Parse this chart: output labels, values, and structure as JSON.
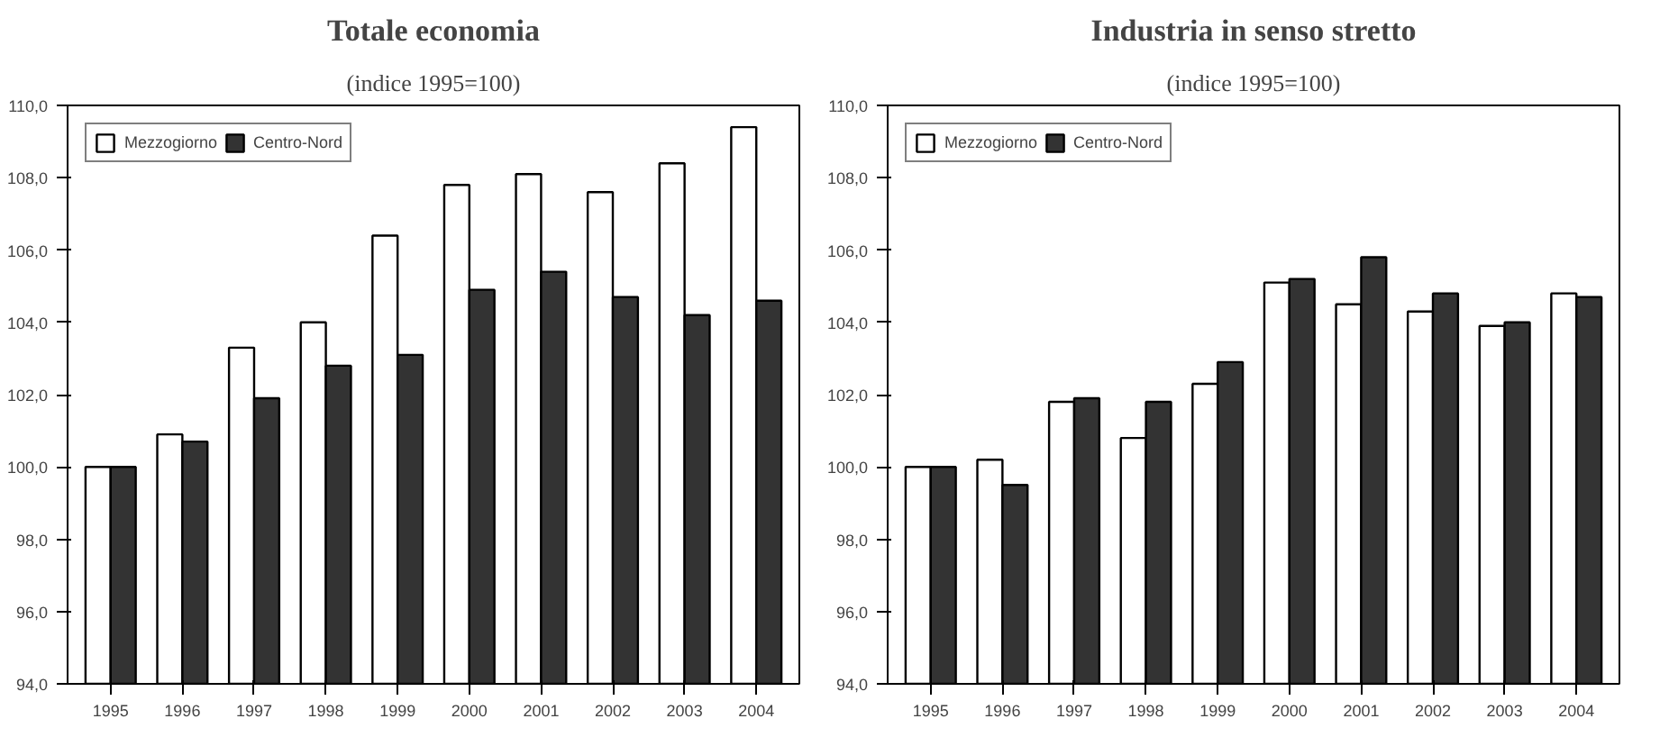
{
  "chart_data": [
    {
      "type": "bar",
      "title": "Totale economia",
      "subtitle": "(indice 1995=100)",
      "categories": [
        "1995",
        "1996",
        "1997",
        "1998",
        "1999",
        "2000",
        "2001",
        "2002",
        "2003",
        "2004"
      ],
      "series": [
        {
          "name": "Mezzogiorno",
          "color": "#ffffff",
          "values": [
            100.0,
            100.9,
            103.3,
            104.0,
            106.4,
            107.8,
            108.1,
            107.6,
            108.4,
            109.4
          ]
        },
        {
          "name": "Centro-Nord",
          "color": "#333333",
          "values": [
            100.0,
            100.7,
            101.9,
            102.8,
            103.1,
            104.9,
            105.4,
            104.7,
            104.2,
            104.6
          ]
        }
      ],
      "ylim": [
        94,
        110
      ],
      "yticks": [
        {
          "value": 94,
          "label": "94,0"
        },
        {
          "value": 96,
          "label": "96,0"
        },
        {
          "value": 98,
          "label": "98,0"
        },
        {
          "value": 100,
          "label": "100,0"
        },
        {
          "value": 102,
          "label": "102,0"
        },
        {
          "value": 104,
          "label": "104,0"
        },
        {
          "value": 106,
          "label": "106,0"
        },
        {
          "value": 108,
          "label": "108,0"
        },
        {
          "value": 110,
          "label": "110,0"
        }
      ],
      "grid": false,
      "legend": "top left"
    },
    {
      "type": "bar",
      "title": "Industria in senso stretto",
      "subtitle": "(indice 1995=100)",
      "categories": [
        "1995",
        "1996",
        "1997",
        "1998",
        "1999",
        "2000",
        "2001",
        "2002",
        "2003",
        "2004"
      ],
      "series": [
        {
          "name": "Mezzogiorno",
          "color": "#ffffff",
          "values": [
            100.0,
            100.2,
            101.8,
            100.8,
            102.3,
            105.1,
            104.5,
            104.3,
            103.9,
            104.8
          ]
        },
        {
          "name": "Centro-Nord",
          "color": "#333333",
          "values": [
            100.0,
            99.5,
            101.9,
            101.8,
            102.9,
            105.2,
            105.8,
            104.8,
            104.0,
            104.7
          ]
        }
      ],
      "ylim": [
        94,
        110
      ],
      "yticks": [
        {
          "value": 94,
          "label": "94,0"
        },
        {
          "value": 96,
          "label": "96,0"
        },
        {
          "value": 98,
          "label": "98,0"
        },
        {
          "value": 100,
          "label": "100,0"
        },
        {
          "value": 102,
          "label": "102,0"
        },
        {
          "value": 104,
          "label": "104,0"
        },
        {
          "value": 106,
          "label": "106,0"
        },
        {
          "value": 108,
          "label": "108,0"
        },
        {
          "value": 110,
          "label": "110,0"
        }
      ],
      "grid": false,
      "legend": "top left"
    }
  ]
}
